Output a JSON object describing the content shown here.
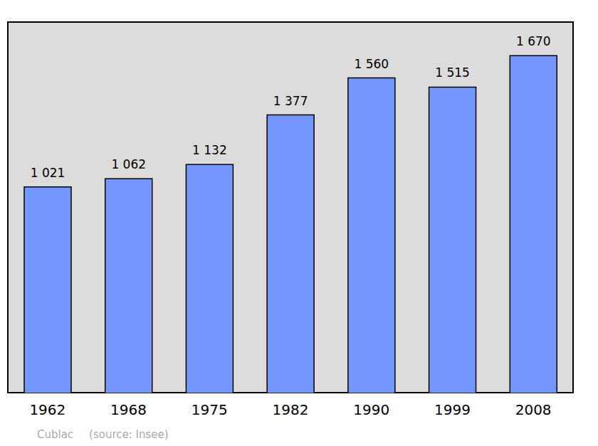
{
  "chart_data": {
    "type": "bar",
    "categories": [
      "1962",
      "1968",
      "1975",
      "1982",
      "1990",
      "1999",
      "2008"
    ],
    "values": [
      1021,
      1062,
      1132,
      1377,
      1560,
      1515,
      1670
    ],
    "value_labels": [
      "1 021",
      "1 062",
      "1 132",
      "1 377",
      "1 560",
      "1 515",
      "1 670"
    ],
    "data_labels": true,
    "color": "#7397fd",
    "ylim": [
      0,
      1840
    ],
    "yticks": [],
    "grid": false,
    "tick_labels": "x",
    "annotations": [
      "Cublac",
      "(source: Insee)"
    ]
  }
}
